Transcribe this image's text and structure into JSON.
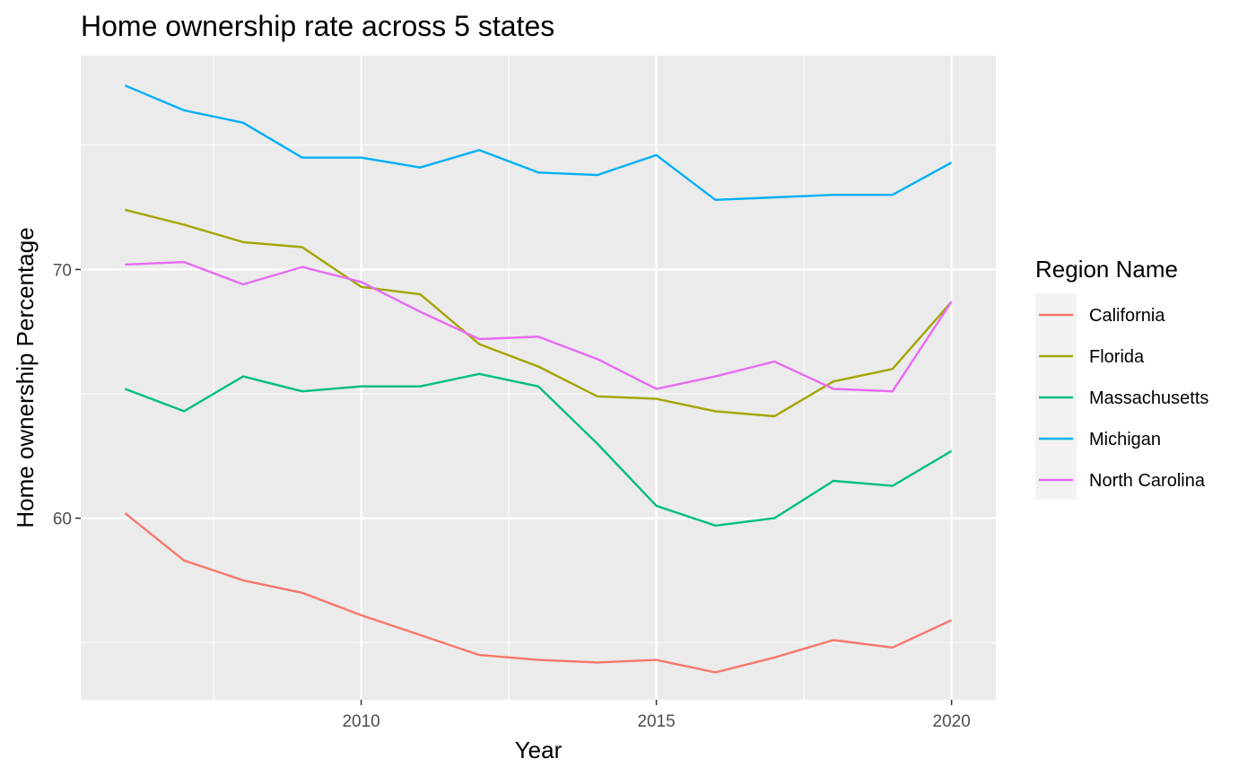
{
  "chart_data": {
    "type": "line",
    "title": "Home ownership rate across 5 states",
    "xlabel": "Year",
    "ylabel": "Home ownership Percentage",
    "xlim": [
      2005.25,
      2020.75
    ],
    "ylim": [
      52.7,
      78.6
    ],
    "x_ticks": [
      2010,
      2015,
      2020
    ],
    "y_ticks": [
      60,
      70
    ],
    "grid": true,
    "legend": {
      "title": "Region Name",
      "position": "right"
    },
    "x": [
      2006,
      2007,
      2008,
      2009,
      2010,
      2011,
      2012,
      2013,
      2014,
      2015,
      2016,
      2017,
      2018,
      2019,
      2020
    ],
    "series": [
      {
        "name": "California",
        "color": "#F8766D",
        "values": [
          60.2,
          58.3,
          57.5,
          57.0,
          56.1,
          55.3,
          54.5,
          54.3,
          54.2,
          54.3,
          53.8,
          54.4,
          55.1,
          54.8,
          55.9
        ]
      },
      {
        "name": "Florida",
        "color": "#A3A500",
        "values": [
          72.4,
          71.8,
          71.1,
          70.9,
          69.3,
          69.0,
          67.0,
          66.1,
          64.9,
          64.8,
          64.3,
          64.1,
          65.5,
          66.0,
          68.7
        ]
      },
      {
        "name": "Massachusetts",
        "color": "#00BF7D",
        "values": [
          65.2,
          64.3,
          65.7,
          65.1,
          65.3,
          65.3,
          65.8,
          65.3,
          63.0,
          60.5,
          59.7,
          60.0,
          61.5,
          61.3,
          62.7
        ]
      },
      {
        "name": "Michigan",
        "color": "#00B0F6",
        "values": [
          77.4,
          76.4,
          75.9,
          74.5,
          74.5,
          74.1,
          74.8,
          73.9,
          73.8,
          74.6,
          72.8,
          72.9,
          73.0,
          73.0,
          74.3
        ]
      },
      {
        "name": "North Carolina",
        "color": "#E76BF3",
        "values": [
          70.2,
          70.3,
          69.4,
          70.1,
          69.5,
          68.3,
          67.2,
          67.3,
          66.4,
          65.2,
          65.7,
          66.3,
          65.2,
          65.1,
          68.7
        ]
      }
    ]
  }
}
